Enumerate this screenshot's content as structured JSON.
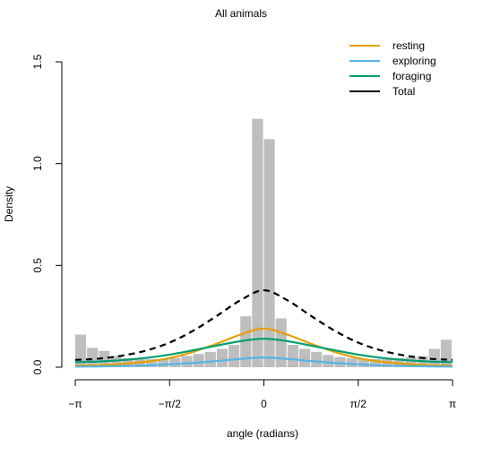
{
  "chart_data": {
    "type": "histogram-with-density-curves",
    "title": "All animals",
    "xlabel": "angle (radians)",
    "ylabel": "Density",
    "xlim": [
      -3.14159,
      3.14159
    ],
    "ylim": [
      0,
      1.5
    ],
    "x_ticks": [
      {
        "value": -3.14159,
        "label": "−π"
      },
      {
        "value": -1.5708,
        "label": "−π/2"
      },
      {
        "value": 0,
        "label": "0"
      },
      {
        "value": 1.5708,
        "label": "π/2"
      },
      {
        "value": 3.14159,
        "label": "π"
      }
    ],
    "y_ticks": [
      {
        "value": 0,
        "label": "0.0"
      },
      {
        "value": 0.5,
        "label": "0.5"
      },
      {
        "value": 1.0,
        "label": "1.0"
      },
      {
        "value": 1.5,
        "label": "1.5"
      }
    ],
    "histogram": {
      "color": "#bebebe",
      "bins": [
        {
          "x0": -3.14159,
          "x1": -2.94524,
          "density": 0.16
        },
        {
          "x0": -2.94524,
          "x1": -2.74889,
          "density": 0.095
        },
        {
          "x0": -2.74889,
          "x1": -2.55254,
          "density": 0.08
        },
        {
          "x0": -2.55254,
          "x1": -2.35619,
          "density": 0.055
        },
        {
          "x0": -2.35619,
          "x1": -2.15984,
          "density": 0.045
        },
        {
          "x0": -2.15984,
          "x1": -1.9635,
          "density": 0.045
        },
        {
          "x0": -1.9635,
          "x1": -1.76715,
          "density": 0.04
        },
        {
          "x0": -1.76715,
          "x1": -1.5708,
          "density": 0.04
        },
        {
          "x0": -1.5708,
          "x1": -1.37445,
          "density": 0.045
        },
        {
          "x0": -1.37445,
          "x1": -1.1781,
          "density": 0.055
        },
        {
          "x0": -1.1781,
          "x1": -0.98175,
          "density": 0.065
        },
        {
          "x0": -0.98175,
          "x1": -0.7854,
          "density": 0.075
        },
        {
          "x0": -0.7854,
          "x1": -0.58905,
          "density": 0.09
        },
        {
          "x0": -0.58905,
          "x1": -0.3927,
          "density": 0.11
        },
        {
          "x0": -0.3927,
          "x1": -0.19635,
          "density": 0.25
        },
        {
          "x0": -0.19635,
          "x1": 0.0,
          "density": 1.22
        },
        {
          "x0": 0.0,
          "x1": 0.19635,
          "density": 1.12
        },
        {
          "x0": 0.19635,
          "x1": 0.3927,
          "density": 0.24
        },
        {
          "x0": 0.3927,
          "x1": 0.58905,
          "density": 0.11
        },
        {
          "x0": 0.58905,
          "x1": 0.7854,
          "density": 0.09
        },
        {
          "x0": 0.7854,
          "x1": 0.98175,
          "density": 0.075
        },
        {
          "x0": 0.98175,
          "x1": 1.1781,
          "density": 0.06
        },
        {
          "x0": 1.1781,
          "x1": 1.37445,
          "density": 0.05
        },
        {
          "x0": 1.37445,
          "x1": 1.5708,
          "density": 0.045
        },
        {
          "x0": 1.5708,
          "x1": 1.76715,
          "density": 0.04
        },
        {
          "x0": 1.76715,
          "x1": 1.9635,
          "density": 0.04
        },
        {
          "x0": 1.9635,
          "x1": 2.15984,
          "density": 0.04
        },
        {
          "x0": 2.15984,
          "x1": 2.35619,
          "density": 0.045
        },
        {
          "x0": 2.35619,
          "x1": 2.55254,
          "density": 0.05
        },
        {
          "x0": 2.55254,
          "x1": 2.74889,
          "density": 0.055
        },
        {
          "x0": 2.74889,
          "x1": 2.94524,
          "density": 0.09
        },
        {
          "x0": 2.94524,
          "x1": 3.14159,
          "density": 0.135
        }
      ]
    },
    "series": [
      {
        "name": "resting",
        "color": "#E69F00",
        "dash": "solid",
        "points": [
          [
            -3.14159,
            0.008
          ],
          [
            -2.75,
            0.01
          ],
          [
            -2.36,
            0.016
          ],
          [
            -1.96,
            0.027
          ],
          [
            -1.57,
            0.045
          ],
          [
            -1.18,
            0.075
          ],
          [
            -0.79,
            0.115
          ],
          [
            -0.39,
            0.16
          ],
          [
            0,
            0.19
          ],
          [
            0.39,
            0.16
          ],
          [
            0.79,
            0.115
          ],
          [
            1.18,
            0.075
          ],
          [
            1.57,
            0.045
          ],
          [
            1.96,
            0.027
          ],
          [
            2.36,
            0.016
          ],
          [
            2.75,
            0.01
          ],
          [
            3.14159,
            0.008
          ]
        ]
      },
      {
        "name": "exploring",
        "color": "#56B4E9",
        "dash": "solid",
        "points": [
          [
            -3.14159,
            0.003
          ],
          [
            -2.75,
            0.004
          ],
          [
            -2.36,
            0.006
          ],
          [
            -1.96,
            0.009
          ],
          [
            -1.57,
            0.014
          ],
          [
            -1.18,
            0.021
          ],
          [
            -0.79,
            0.03
          ],
          [
            -0.39,
            0.041
          ],
          [
            0,
            0.048
          ],
          [
            0.39,
            0.041
          ],
          [
            0.79,
            0.03
          ],
          [
            1.18,
            0.021
          ],
          [
            1.57,
            0.014
          ],
          [
            1.96,
            0.009
          ],
          [
            2.36,
            0.006
          ],
          [
            2.75,
            0.004
          ],
          [
            3.14159,
            0.003
          ]
        ]
      },
      {
        "name": "foraging",
        "color": "#009E73",
        "dash": "solid",
        "points": [
          [
            -3.14159,
            0.025
          ],
          [
            -2.75,
            0.028
          ],
          [
            -2.36,
            0.035
          ],
          [
            -1.96,
            0.046
          ],
          [
            -1.57,
            0.062
          ],
          [
            -1.18,
            0.083
          ],
          [
            -0.79,
            0.106
          ],
          [
            -0.39,
            0.128
          ],
          [
            0,
            0.14
          ],
          [
            0.39,
            0.128
          ],
          [
            0.79,
            0.106
          ],
          [
            1.18,
            0.083
          ],
          [
            1.57,
            0.062
          ],
          [
            1.96,
            0.046
          ],
          [
            2.36,
            0.035
          ],
          [
            2.75,
            0.028
          ],
          [
            3.14159,
            0.025
          ]
        ]
      },
      {
        "name": "Total",
        "color": "#000000",
        "dash": "dashed",
        "points": [
          [
            -3.14159,
            0.036
          ],
          [
            -2.75,
            0.042
          ],
          [
            -2.36,
            0.057
          ],
          [
            -1.96,
            0.082
          ],
          [
            -1.57,
            0.121
          ],
          [
            -1.18,
            0.179
          ],
          [
            -0.79,
            0.251
          ],
          [
            -0.39,
            0.329
          ],
          [
            0,
            0.378
          ],
          [
            0.39,
            0.329
          ],
          [
            0.79,
            0.251
          ],
          [
            1.18,
            0.179
          ],
          [
            1.57,
            0.121
          ],
          [
            1.96,
            0.082
          ],
          [
            2.36,
            0.057
          ],
          [
            2.75,
            0.042
          ],
          [
            3.14159,
            0.036
          ]
        ]
      }
    ],
    "legend": {
      "placement": "top-right",
      "entries": [
        {
          "label": "resting",
          "color": "#E69F00"
        },
        {
          "label": "exploring",
          "color": "#56B4E9"
        },
        {
          "label": "foraging",
          "color": "#009E73"
        },
        {
          "label": "Total",
          "color": "#000000"
        }
      ]
    },
    "grid": false
  }
}
